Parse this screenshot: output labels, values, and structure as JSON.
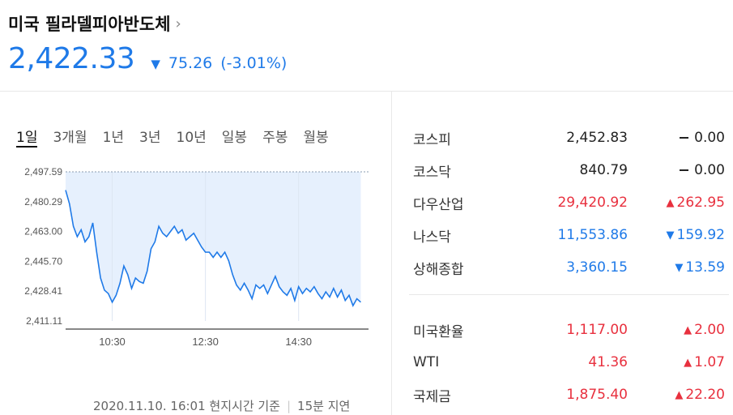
{
  "header": {
    "title": "미국 필라델피아반도체",
    "price": "2,422.33",
    "change": "75.26",
    "change_pct": "(-3.01%)"
  },
  "tabs": [
    "1일",
    "3개월",
    "1년",
    "3년",
    "10년",
    "일봉",
    "주봉",
    "월봉"
  ],
  "chart_data": {
    "type": "area",
    "y_ticks": [
      "2,497.59",
      "2,480.29",
      "2,463.00",
      "2,445.70",
      "2,428.41",
      "2,411.11"
    ],
    "y_tick_values": [
      2497.59,
      2480.29,
      2463.0,
      2445.7,
      2428.41,
      2411.11
    ],
    "x_ticks": [
      "10:30",
      "12:30",
      "14:30"
    ],
    "ylim": [
      2411.11,
      2497.59
    ],
    "reference_line": 2497.59,
    "series": [
      {
        "points": [
          [
            "09:30",
            2487
          ],
          [
            "09:35",
            2479
          ],
          [
            "09:40",
            2466
          ],
          [
            "09:45",
            2460
          ],
          [
            "09:50",
            2464
          ],
          [
            "09:55",
            2457
          ],
          [
            "10:00",
            2460
          ],
          [
            "10:05",
            2468
          ],
          [
            "10:10",
            2451
          ],
          [
            "10:15",
            2436
          ],
          [
            "10:20",
            2429
          ],
          [
            "10:25",
            2427
          ],
          [
            "10:30",
            2422
          ],
          [
            "10:35",
            2426
          ],
          [
            "10:40",
            2433
          ],
          [
            "10:45",
            2443
          ],
          [
            "10:50",
            2438
          ],
          [
            "10:55",
            2430
          ],
          [
            "11:00",
            2436
          ],
          [
            "11:05",
            2434
          ],
          [
            "11:10",
            2433
          ],
          [
            "11:15",
            2440
          ],
          [
            "11:20",
            2453
          ],
          [
            "11:25",
            2457
          ],
          [
            "11:30",
            2466
          ],
          [
            "11:35",
            2462
          ],
          [
            "11:40",
            2460
          ],
          [
            "11:45",
            2463
          ],
          [
            "11:50",
            2466
          ],
          [
            "11:55",
            2462
          ],
          [
            "12:00",
            2464
          ],
          [
            "12:05",
            2458
          ],
          [
            "12:10",
            2460
          ],
          [
            "12:15",
            2462
          ],
          [
            "12:20",
            2458
          ],
          [
            "12:25",
            2454
          ],
          [
            "12:30",
            2451
          ],
          [
            "12:35",
            2451
          ],
          [
            "12:40",
            2448
          ],
          [
            "12:45",
            2451
          ],
          [
            "12:50",
            2448
          ],
          [
            "12:55",
            2451
          ],
          [
            "13:00",
            2446
          ],
          [
            "13:05",
            2438
          ],
          [
            "13:10",
            2432
          ],
          [
            "13:15",
            2429
          ],
          [
            "13:20",
            2433
          ],
          [
            "13:25",
            2429
          ],
          [
            "13:30",
            2424
          ],
          [
            "13:35",
            2432
          ],
          [
            "13:40",
            2430
          ],
          [
            "13:45",
            2432
          ],
          [
            "13:50",
            2427
          ],
          [
            "13:55",
            2432
          ],
          [
            "14:00",
            2437
          ],
          [
            "14:05",
            2431
          ],
          [
            "14:10",
            2428
          ],
          [
            "14:15",
            2426
          ],
          [
            "14:20",
            2430
          ],
          [
            "14:25",
            2423
          ],
          [
            "14:30",
            2431
          ],
          [
            "14:35",
            2427
          ],
          [
            "14:40",
            2430
          ],
          [
            "14:45",
            2428
          ],
          [
            "14:50",
            2431
          ],
          [
            "14:55",
            2427
          ],
          [
            "15:00",
            2424
          ],
          [
            "15:05",
            2428
          ],
          [
            "15:10",
            2425
          ],
          [
            "15:15",
            2430
          ],
          [
            "15:20",
            2425
          ],
          [
            "15:25",
            2429
          ],
          [
            "15:30",
            2423
          ],
          [
            "15:35",
            2426
          ],
          [
            "15:40",
            2420
          ],
          [
            "15:45",
            2424
          ],
          [
            "15:50",
            2422
          ]
        ]
      }
    ]
  },
  "footer": {
    "timestamp": "2020.11.10. 16:01 현지시간 기준",
    "delay": "15분 지연"
  },
  "markets1": [
    {
      "name": "코스피",
      "value": "2,452.83",
      "change": "0.00",
      "dir": "flat"
    },
    {
      "name": "코스닥",
      "value": "840.79",
      "change": "0.00",
      "dir": "flat"
    },
    {
      "name": "다우산업",
      "value": "29,420.92",
      "change": "262.95",
      "dir": "up"
    },
    {
      "name": "나스닥",
      "value": "11,553.86",
      "change": "159.92",
      "dir": "down"
    },
    {
      "name": "상해종합",
      "value": "3,360.15",
      "change": "13.59",
      "dir": "down"
    }
  ],
  "markets2": [
    {
      "name": "미국환율",
      "value": "1,117.00",
      "change": "2.00",
      "dir": "up"
    },
    {
      "name": "WTI",
      "value": "41.36",
      "change": "1.07",
      "dir": "up"
    },
    {
      "name": "국제금",
      "value": "1,875.40",
      "change": "22.20",
      "dir": "up"
    }
  ],
  "colors": {
    "up": "#e8303e",
    "down": "#1f7ae8",
    "line": "#1f7ae8",
    "fill": "#e6f0fd"
  }
}
